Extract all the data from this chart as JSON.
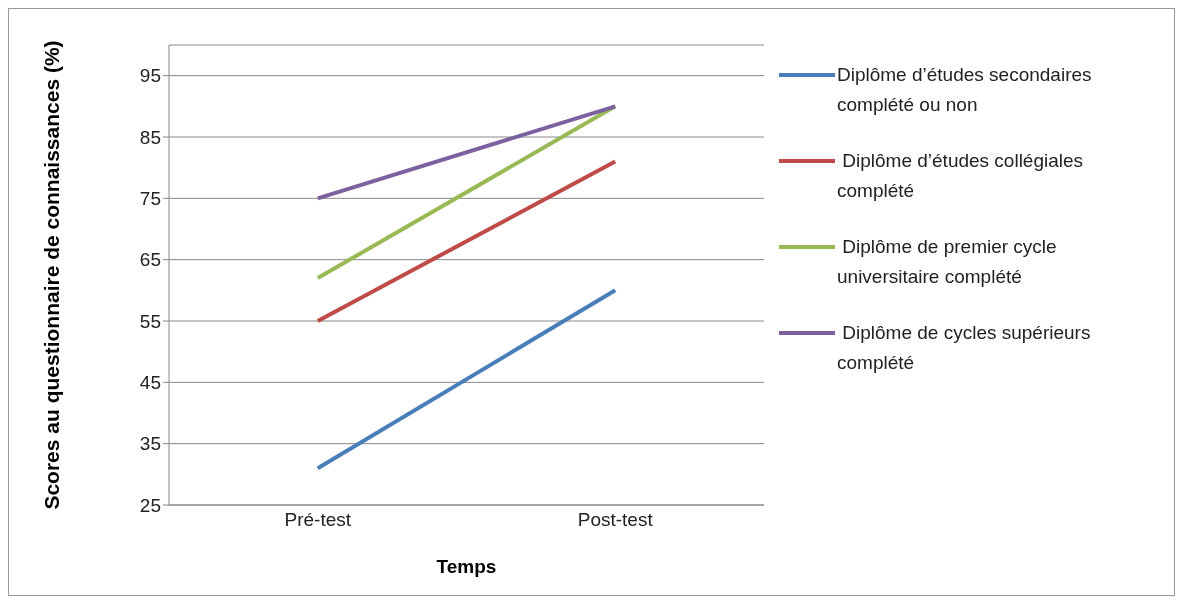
{
  "chart_data": {
    "type": "line",
    "xlabel": "Temps",
    "ylabel": "Scores au questionnaire de connaissances (%)",
    "categories": [
      "Pré-test",
      "Post-test"
    ],
    "series": [
      {
        "name": "Diplôme d’études secondaires complété ou non",
        "color": "#4a7ebb",
        "values": [
          31,
          60
        ]
      },
      {
        "name": " Diplôme d’études collégiales complété",
        "color": "#be4b48",
        "values": [
          55,
          81
        ]
      },
      {
        "name": " Diplôme de premier cycle universitaire complété",
        "color": "#98b954",
        "values": [
          62,
          90
        ]
      },
      {
        "name": " Diplôme de cycles supérieurs complété",
        "color": "#7d60a0",
        "values": [
          75,
          90
        ]
      }
    ],
    "ylim": [
      25,
      100
    ],
    "yticks": [
      25,
      35,
      45,
      55,
      65,
      75,
      85,
      95
    ],
    "grid": "y",
    "legend": "right",
    "marker": "none",
    "line_style": "solid"
  }
}
